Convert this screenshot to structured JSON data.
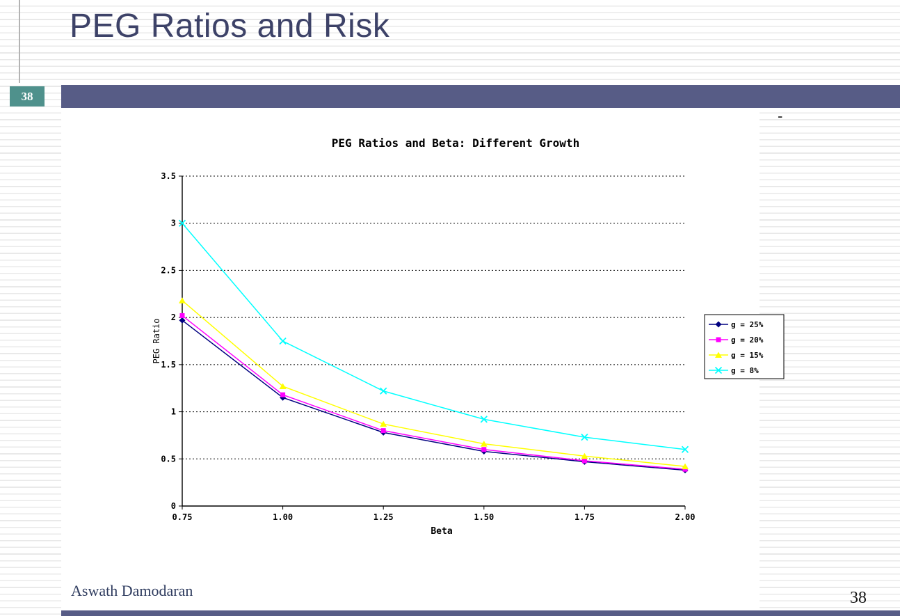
{
  "slide": {
    "title": "PEG Ratios and Risk",
    "slide_number_badge": "38",
    "top_right_dash": "-",
    "footer_author": "Aswath Damodaran",
    "footer_page_number": "38"
  },
  "colors": {
    "title_text": "#3d4268",
    "badge_background": "#4f918c",
    "header_bar": "#575c86",
    "series_g25": "#000080",
    "series_g20": "#ff00ff",
    "series_g15": "#ffff00",
    "series_g8": "#00ffff"
  },
  "chart_data": {
    "type": "line",
    "title": "PEG Ratios and Beta: Different Growth",
    "xlabel": "Beta",
    "ylabel": "PEG Ratio",
    "x": [
      0.75,
      1.0,
      1.25,
      1.5,
      1.75,
      2.0
    ],
    "x_tick_labels": [
      "0.75",
      "1.00",
      "1.25",
      "1.50",
      "1.75",
      "2.00"
    ],
    "y_ticks": [
      0,
      0.5,
      1,
      1.5,
      2,
      2.5,
      3,
      3.5
    ],
    "y_tick_labels": [
      "0",
      "0.5",
      "1",
      "1.5",
      "2",
      "2.5",
      "3",
      "3.5"
    ],
    "ylim": [
      0,
      3.5
    ],
    "xlim": [
      0.75,
      2.0
    ],
    "grid": "horizontal-dashed",
    "legend_position": "right",
    "series": [
      {
        "name": "g = 25%",
        "marker": "diamond",
        "color": "#000080",
        "values": [
          1.97,
          1.15,
          0.78,
          0.58,
          0.47,
          0.38
        ]
      },
      {
        "name": "g = 20%",
        "marker": "square",
        "color": "#ff00ff",
        "values": [
          2.02,
          1.18,
          0.8,
          0.6,
          0.48,
          0.39
        ]
      },
      {
        "name": "g = 15%",
        "marker": "triangle",
        "color": "#ffff00",
        "values": [
          2.18,
          1.27,
          0.87,
          0.66,
          0.53,
          0.42
        ]
      },
      {
        "name": "g = 8%",
        "marker": "x",
        "color": "#00ffff",
        "values": [
          3.0,
          1.75,
          1.22,
          0.92,
          0.73,
          0.6
        ]
      }
    ]
  }
}
